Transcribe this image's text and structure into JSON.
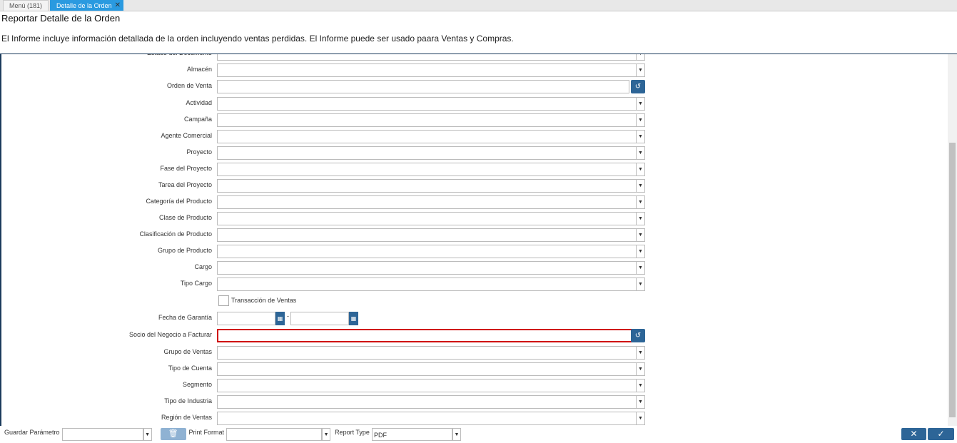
{
  "tabs": [
    {
      "label": "Menú (181)"
    },
    {
      "label": "Detalle de la Orden",
      "close": "close-icon"
    }
  ],
  "header": {
    "title": "Reportar Detalle de la Orden",
    "description": "El Informe incluye información detallada de la orden incluyendo ventas perdidas. El Informe puede ser usado paara Ventas y Compras."
  },
  "fields": [
    {
      "label": "Estado del Documento",
      "type": "select"
    },
    {
      "label": "Almacén",
      "type": "select"
    },
    {
      "label": "Orden de Venta",
      "type": "search"
    },
    {
      "label": "Actividad",
      "type": "select"
    },
    {
      "label": "Campaña",
      "type": "select"
    },
    {
      "label": "Agente Comercial",
      "type": "select"
    },
    {
      "label": "Proyecto",
      "type": "select"
    },
    {
      "label": "Fase del Proyecto",
      "type": "select"
    },
    {
      "label": "Tarea del Proyecto",
      "type": "select"
    },
    {
      "label": "Categoría del Producto",
      "type": "select"
    },
    {
      "label": "Clase de Producto",
      "type": "select"
    },
    {
      "label": "Clasificación de Producto",
      "type": "select"
    },
    {
      "label": "Grupo de Producto",
      "type": "select"
    },
    {
      "label": "Cargo",
      "type": "select"
    },
    {
      "label": "Tipo Cargo",
      "type": "select"
    },
    {
      "label": "Transacción de Ventas",
      "type": "checkbox",
      "checked": false
    },
    {
      "label": "Fecha de Garantía",
      "type": "daterange",
      "separator": "-"
    },
    {
      "label": "Socio del Negocio a Facturar",
      "type": "search",
      "required": true
    },
    {
      "label": "Grupo de Ventas",
      "type": "select"
    },
    {
      "label": "Tipo de Cuenta",
      "type": "select"
    },
    {
      "label": "Segmento",
      "type": "select"
    },
    {
      "label": "Tipo de Industria",
      "type": "select"
    },
    {
      "label": "Región de Ventas",
      "type": "select"
    }
  ],
  "footer": {
    "save_param_label": "Guardar Parámetro",
    "save_param_value": "",
    "print_format_label": "Print Format",
    "print_format_value": "",
    "report_type_label": "Report Type",
    "report_type_value": "PDF"
  },
  "colors": {
    "accent": "#2d6597",
    "tab_active": "#2a9ae0",
    "required_border": "#d00000"
  }
}
